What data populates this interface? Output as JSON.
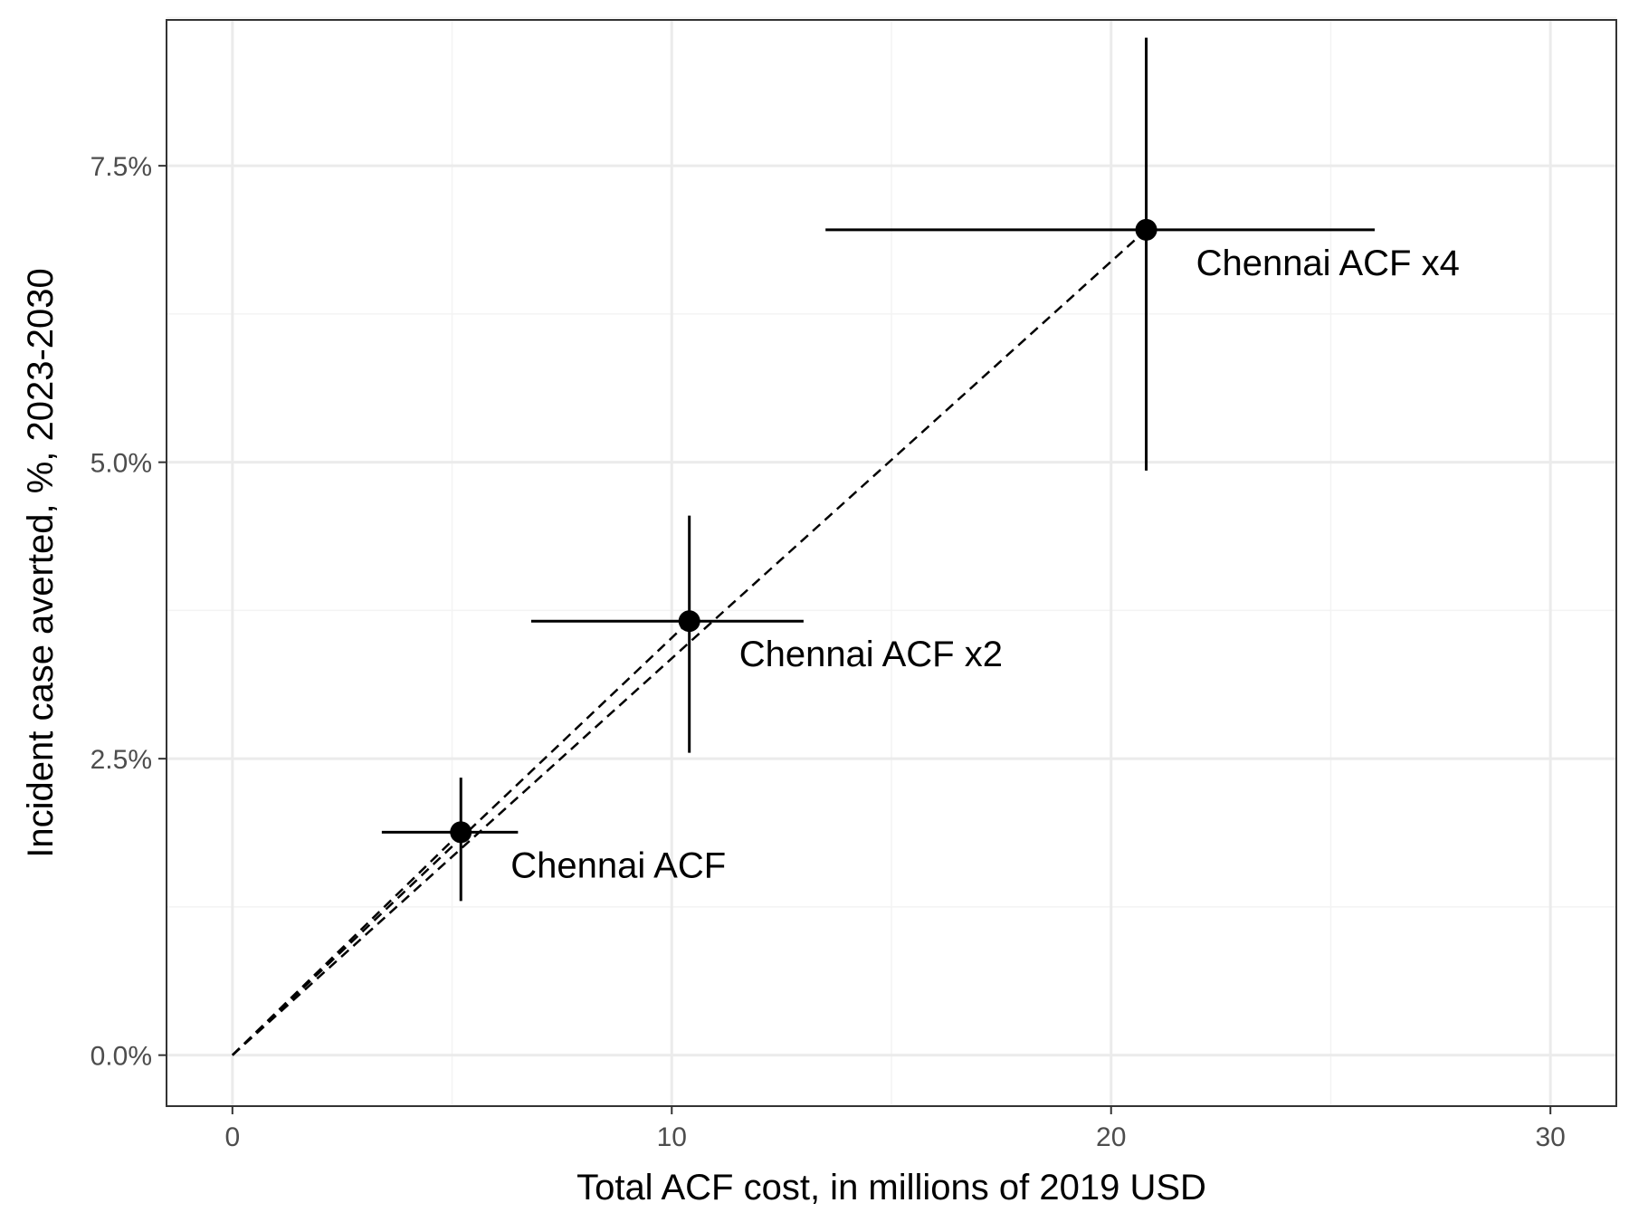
{
  "chart_data": {
    "type": "scatter",
    "title": "",
    "xlabel": "Total ACF cost, in millions of 2019 USD",
    "ylabel": "Incident case averted, %, 2023-2030",
    "xlim": [
      -1.5,
      31.5
    ],
    "ylim": [
      -0.0043,
      0.0873
    ],
    "x_ticks": [
      {
        "value": 0,
        "label": "0"
      },
      {
        "value": 10,
        "label": "10"
      },
      {
        "value": 20,
        "label": "20"
      },
      {
        "value": 30,
        "label": "30"
      }
    ],
    "y_ticks": [
      {
        "value": 0.0,
        "label": "0.0%"
      },
      {
        "value": 0.025,
        "label": "2.5%"
      },
      {
        "value": 0.05,
        "label": "5.0%"
      },
      {
        "value": 0.075,
        "label": "7.5%"
      }
    ],
    "x_minor_grid": [
      5,
      15,
      25
    ],
    "y_minor_grid": [
      0.0125,
      0.0375,
      0.0625,
      0.0875
    ],
    "grid": true,
    "points": [
      {
        "label": "Chennai ACF",
        "x": 5.2,
        "y": 0.0188,
        "x_err": [
          3.4,
          6.5
        ],
        "y_err": [
          0.013,
          0.0234
        ]
      },
      {
        "label": "Chennai ACF x2",
        "x": 10.4,
        "y": 0.0366,
        "x_err": [
          6.8,
          13.0
        ],
        "y_err": [
          0.0255,
          0.0455
        ]
      },
      {
        "label": "Chennai ACF x4",
        "x": 20.8,
        "y": 0.0696,
        "x_err": [
          13.5,
          26.0
        ],
        "y_err": [
          0.0493,
          0.0858
        ]
      }
    ],
    "reference_lines": [
      {
        "style": "dashed",
        "from": [
          0,
          0
        ],
        "to": [
          5.2,
          0.0188
        ]
      },
      {
        "style": "dashed",
        "from": [
          0,
          0
        ],
        "to": [
          10.4,
          0.0366
        ]
      },
      {
        "style": "dashed",
        "from": [
          0,
          0
        ],
        "to": [
          20.8,
          0.0696
        ]
      }
    ],
    "colors": {
      "points": "#000000",
      "panel_border": "#333333",
      "grid_major": "#ebebeb",
      "grid_minor": "#f3f3f3",
      "tick_label": "#4d4d4d"
    }
  }
}
